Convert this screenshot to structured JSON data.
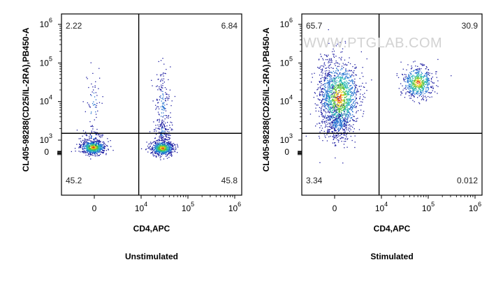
{
  "watermark": "WWW.PTGLAB.COM",
  "chart_data": [
    {
      "type": "scatter",
      "title": "",
      "condition_label": "Unstimulated",
      "xlabel": "CD4,APC",
      "ylabel": "CL405-98288(CD25/IL-2RA),PB450-A",
      "x_ticks": [
        {
          "base": "0",
          "exp": ""
        },
        {
          "base": "10",
          "exp": "4"
        },
        {
          "base": "10",
          "exp": "5"
        },
        {
          "base": "10",
          "exp": "6"
        }
      ],
      "y_ticks": [
        {
          "base": "0",
          "exp": ""
        },
        {
          "base": "10",
          "exp": "3"
        },
        {
          "base": "10",
          "exp": "4"
        },
        {
          "base": "10",
          "exp": "5"
        },
        {
          "base": "10",
          "exp": "6"
        }
      ],
      "scale": "biexponential (log decades above 10^3)",
      "quadrant_gate": {
        "x": 8000,
        "y": 1500
      },
      "quadrants": [
        {
          "position": "top-left",
          "percent": "2.22"
        },
        {
          "position": "top-right",
          "percent": "6.84"
        },
        {
          "position": "bottom-left",
          "percent": "45.2"
        },
        {
          "position": "bottom-right",
          "percent": "45.8"
        }
      ],
      "populations": [
        {
          "name": "CD4- CD25-",
          "x_center": 0,
          "y_center": 0
        },
        {
          "name": "CD4+ CD25-",
          "x_center": 30000,
          "y_center": 0
        },
        {
          "name": "CD4+ CD25+",
          "x_center": 25000,
          "y_center": 15000
        },
        {
          "name": "CD4- CD25+",
          "x_center": 0,
          "y_center": 8000
        }
      ]
    },
    {
      "type": "scatter",
      "title": "",
      "condition_label": "Stimulated",
      "xlabel": "CD4,APC",
      "ylabel": "CL405-98288(CD25/IL-2RA),PB450-A",
      "x_ticks": [
        {
          "base": "0",
          "exp": ""
        },
        {
          "base": "10",
          "exp": "4"
        },
        {
          "base": "10",
          "exp": "5"
        },
        {
          "base": "10",
          "exp": "6"
        }
      ],
      "y_ticks": [
        {
          "base": "0",
          "exp": ""
        },
        {
          "base": "10",
          "exp": "3"
        },
        {
          "base": "10",
          "exp": "4"
        },
        {
          "base": "10",
          "exp": "5"
        },
        {
          "base": "10",
          "exp": "6"
        }
      ],
      "scale": "biexponential (log decades above 10^3)",
      "quadrant_gate": {
        "x": 8000,
        "y": 1500
      },
      "quadrants": [
        {
          "position": "top-left",
          "percent": "65.7"
        },
        {
          "position": "top-right",
          "percent": "30.9"
        },
        {
          "position": "bottom-left",
          "percent": "3.34"
        },
        {
          "position": "bottom-right",
          "percent": "0.012"
        }
      ],
      "populations": [
        {
          "name": "CD4- CD25+",
          "x_center": 0,
          "y_center": 8000
        },
        {
          "name": "CD4+ CD25+",
          "x_center": 60000,
          "y_center": 25000
        }
      ]
    }
  ]
}
